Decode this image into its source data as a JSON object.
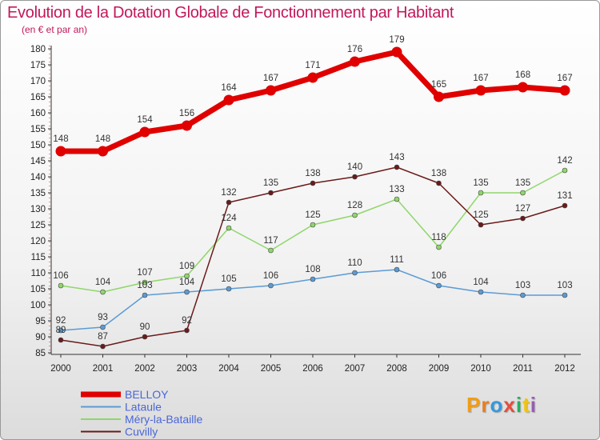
{
  "header": {
    "title": "Evolution de la Dotation Globale de Fonctionnement par Habitant",
    "subtitle": "(en € et par an)"
  },
  "logo": {
    "text": "Proxiti",
    "letters": [
      "P",
      "r",
      "o",
      "x",
      "i",
      "t",
      "i"
    ],
    "colors": [
      "#f39c12",
      "#e67e22",
      "#3498db",
      "#e74c3c",
      "#27ae60",
      "#f1c40f",
      "#9b59b6"
    ]
  },
  "chart_data": {
    "type": "line",
    "title": "Evolution de la Dotation Globale de Fonctionnement par Habitant",
    "subtitle": "(en € et par an)",
    "xlabel": "",
    "ylabel": "",
    "x": [
      "2000",
      "2001",
      "2002",
      "2003",
      "2004",
      "2005",
      "2006",
      "2007",
      "2008",
      "2009",
      "2010",
      "2011",
      "2012"
    ],
    "ylim": [
      85,
      180
    ],
    "yticks": [
      85,
      90,
      95,
      100,
      105,
      110,
      115,
      120,
      125,
      130,
      135,
      140,
      145,
      150,
      155,
      160,
      165,
      170,
      175,
      180
    ],
    "legend_position": "bottom-left",
    "grid": false,
    "series": [
      {
        "name": "BELLOY",
        "color": "#e00000",
        "values": [
          148,
          148,
          154,
          156,
          164,
          167,
          171,
          176,
          179,
          165,
          167,
          168,
          167
        ]
      },
      {
        "name": "Lataule",
        "color": "#5b9bd5",
        "values": [
          92,
          93,
          103,
          104,
          105,
          106,
          108,
          110,
          111,
          106,
          104,
          103,
          103
        ]
      },
      {
        "name": "Méry-la-Bataille",
        "color": "#8fd66a",
        "values": [
          106,
          104,
          107,
          109,
          124,
          117,
          125,
          128,
          133,
          118,
          135,
          135,
          142
        ]
      },
      {
        "name": "Cuvilly",
        "color": "#6b1a1a",
        "values": [
          89,
          87,
          90,
          92,
          132,
          135,
          138,
          140,
          143,
          138,
          125,
          127,
          131
        ]
      }
    ]
  }
}
